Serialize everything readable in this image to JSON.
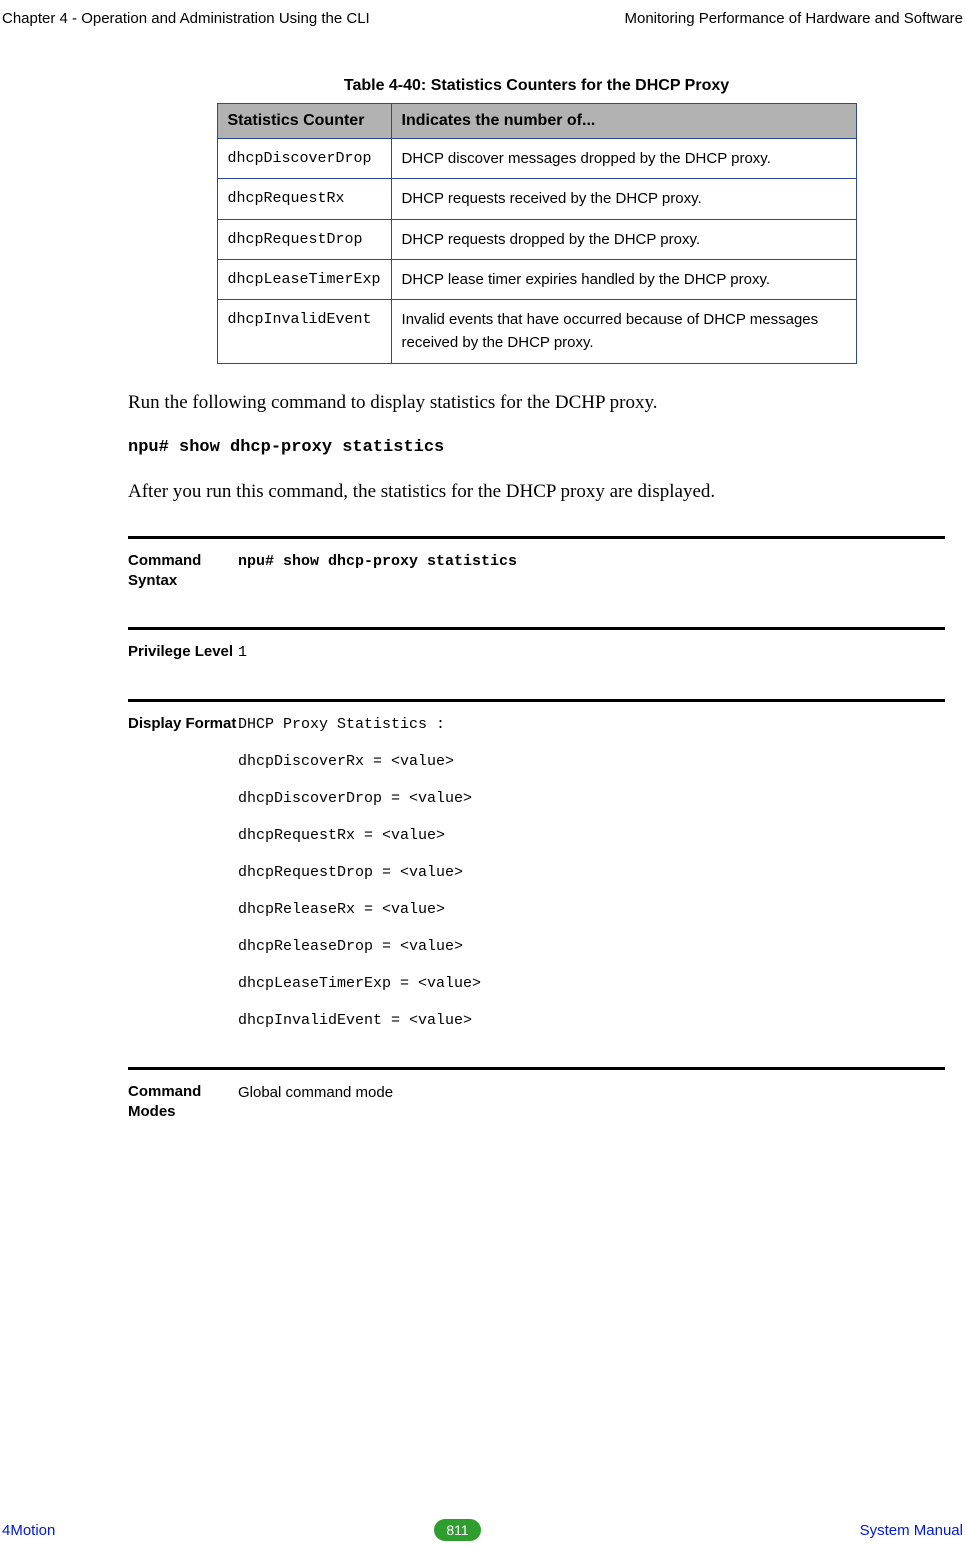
{
  "header": {
    "left": "Chapter 4 - Operation and Administration Using the CLI",
    "right": "Monitoring Performance of Hardware and Software"
  },
  "table": {
    "caption": "Table 4-40: Statistics Counters for the DHCP Proxy",
    "columns": [
      "Statistics Counter",
      "Indicates the number of..."
    ],
    "header_bg": "#b2b2b2",
    "border_color": "#2a4c8f",
    "rows": [
      {
        "counter": "dhcpDiscoverDrop",
        "desc": "DHCP discover messages dropped by the DHCP proxy."
      },
      {
        "counter": "dhcpRequestRx",
        "desc": "DHCP requests received by the DHCP proxy."
      },
      {
        "counter": "dhcpRequestDrop",
        "desc": "DHCP requests dropped by the DHCP proxy."
      },
      {
        "counter": "dhcpLeaseTimerExp",
        "desc": "DHCP lease timer expiries handled by the DHCP proxy."
      },
      {
        "counter": "dhcpInvalidEvent",
        "desc": "Invalid events that have occurred because of DHCP messages received by the DHCP proxy."
      }
    ]
  },
  "paragraphs": {
    "p1": "Run the following command to display statistics for the DCHP proxy.",
    "cmd": "npu# show dhcp-proxy statistics",
    "p2": "After you run this command, the statistics for the DHCP proxy are displayed."
  },
  "sections": {
    "command_syntax": {
      "label": "Command Syntax",
      "value": "npu# show dhcp-proxy statistics"
    },
    "privilege_level": {
      "label": "Privilege Level",
      "value": "1"
    },
    "display_format": {
      "label": "Display Format",
      "lines": [
        "DHCP Proxy Statistics :",
        "dhcpDiscoverRx = <value>",
        "dhcpDiscoverDrop = <value>",
        "dhcpRequestRx = <value>",
        "dhcpRequestDrop = <value>",
        "dhcpReleaseRx = <value>",
        "dhcpReleaseDrop = <value>",
        "dhcpLeaseTimerExp = <value>",
        "dhcpInvalidEvent = <value>"
      ]
    },
    "command_modes": {
      "label": "Command Modes",
      "value": "Global command mode"
    }
  },
  "footer": {
    "left": "4Motion",
    "page": "811",
    "right": "System Manual",
    "text_color": "#0018d4",
    "badge_bg": "#2f9e2f"
  }
}
